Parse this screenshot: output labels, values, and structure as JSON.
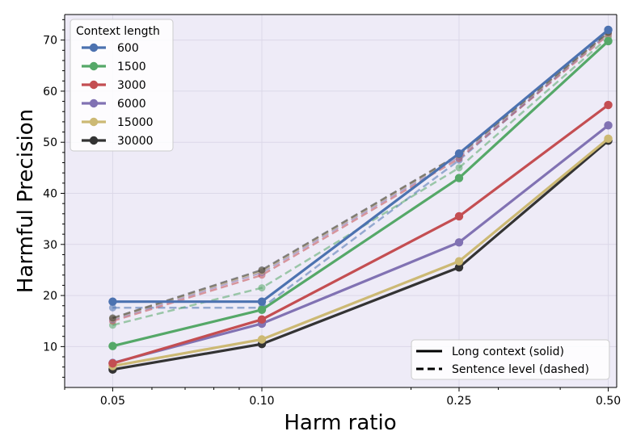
{
  "chart_data": {
    "type": "line",
    "xlabel": "Harm ratio",
    "ylabel": "Harmful Precision",
    "x": [
      0.05,
      0.1,
      0.25,
      0.5
    ],
    "x_tick_labels": [
      "0.05",
      "0.10",
      "0.25",
      "0.50"
    ],
    "y_ticks": [
      10,
      20,
      30,
      40,
      50,
      60,
      70
    ],
    "y_tick_labels": [
      "10",
      "20",
      "30",
      "40",
      "50",
      "60",
      "70"
    ],
    "xlim": [
      0.04,
      0.52
    ],
    "ylim": [
      2,
      75
    ],
    "x_scale": "log",
    "grid": true,
    "legend_title": "Context length",
    "legend_position": "top-left",
    "style_legend": {
      "position": "bottom-right",
      "entries": [
        {
          "label": "Long context (solid)",
          "dash": "solid"
        },
        {
          "label": "Sentence level (dashed)",
          "dash": "dashed"
        }
      ]
    },
    "series": [
      {
        "name": "600",
        "color": "#4c72b0",
        "solid": [
          18.8,
          18.8,
          47.8,
          72.0
        ],
        "dashed": [
          17.6,
          17.6,
          46.5,
          71.5
        ]
      },
      {
        "name": "1500",
        "color": "#55a868",
        "solid": [
          10.1,
          17.2,
          43.0,
          69.8
        ],
        "dashed": [
          14.2,
          21.5,
          45.0,
          70.5
        ]
      },
      {
        "name": "3000",
        "color": "#c44e52",
        "solid": [
          6.7,
          15.3,
          35.5,
          57.3
        ],
        "dashed": [
          15.0,
          24.0,
          46.8,
          71.0
        ]
      },
      {
        "name": "6000",
        "color": "#8172b3",
        "solid": [
          6.8,
          14.5,
          30.4,
          53.3
        ],
        "dashed": [
          15.3,
          24.5,
          47.2,
          71.2
        ]
      },
      {
        "name": "15000",
        "color": "#ccb974",
        "solid": [
          6.2,
          11.4,
          26.7,
          50.7
        ],
        "dashed": [
          15.5,
          24.8,
          47.5,
          71.3
        ]
      },
      {
        "name": "30000",
        "color": "#333333",
        "solid": [
          5.5,
          10.5,
          25.5,
          50.3
        ],
        "dashed": [
          15.6,
          25.0,
          47.6,
          71.5
        ]
      }
    ]
  }
}
